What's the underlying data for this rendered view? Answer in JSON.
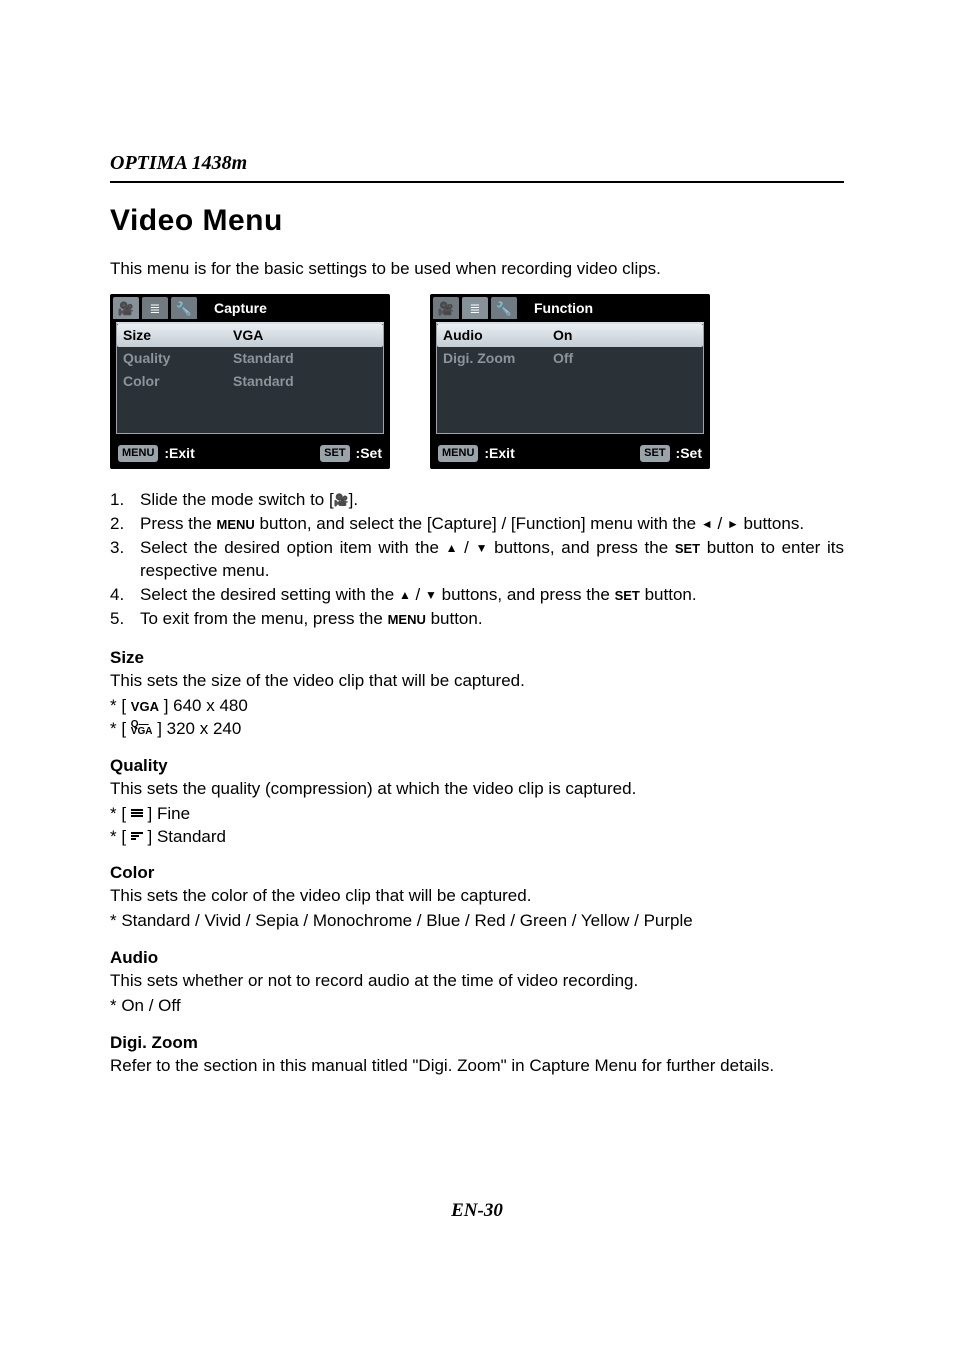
{
  "header": {
    "model": "OPTIMA 1438m"
  },
  "title": "Video Menu",
  "intro": "This menu is for the basic settings to be used when recording video clips.",
  "screens": {
    "capture": {
      "title": "Capture",
      "rows": [
        {
          "label": "Size",
          "value": "VGA",
          "selected": true
        },
        {
          "label": "Quality",
          "value": "Standard",
          "selected": false
        },
        {
          "label": "Color",
          "value": "Standard",
          "selected": false
        }
      ],
      "footer": {
        "exit_btn": "MENU",
        "exit_label": ":Exit",
        "set_btn": "SET",
        "set_label": ":Set"
      }
    },
    "function": {
      "title": "Function",
      "rows": [
        {
          "label": "Audio",
          "value": "On",
          "selected": true
        },
        {
          "label": "Digi. Zoom",
          "value": "Off",
          "selected": false
        }
      ],
      "footer": {
        "exit_btn": "MENU",
        "exit_label": ":Exit",
        "set_btn": "SET",
        "set_label": ":Set"
      }
    },
    "colors": {
      "screen_bg": "#000000",
      "body_bg": "#2b3237",
      "tab_bg": "#6f7a81",
      "tab_active_bg": "#86929a",
      "row_unselected_text": "#8b949b",
      "row_selected_bg_top": "#e9eef2",
      "row_selected_bg_bottom": "#c3cdd4",
      "chip_bg": "#9aa4ab"
    }
  },
  "steps": {
    "s1a": "Slide the mode switch to [",
    "s1b": "].",
    "s2a": "Press the ",
    "s2_menu": "MENU",
    "s2b": " button, and select the [Capture] / [Function] menu with the ",
    "s2_left": "◄",
    "s2_slash": " / ",
    "s2_right": "►",
    "s2c": " buttons.",
    "s3a": "Select the desired option item with the ",
    "s3_up": "▲",
    "s3_slash": " / ",
    "s3_down": "▼",
    "s3b": " buttons, and press the ",
    "s3_set": "SET",
    "s3c": " button to enter its respective menu.",
    "s4a": "Select the desired setting with the ",
    "s4_up": "▲",
    "s4_slash": " / ",
    "s4_down": "▼",
    "s4b": " buttons, and press the ",
    "s4_set": "SET",
    "s4c": " button.",
    "s5a": "To exit from the menu, press the ",
    "s5_menu": "MENU",
    "s5b": " button."
  },
  "size": {
    "title": "Size",
    "desc": "This sets the size of the video clip that will be captured.",
    "l1a": "* [ ",
    "l1_glyph": "VGA",
    "l1b": " ] 640 x 480",
    "l2a": "* [ ",
    "l2_top": "Q—",
    "l2_bot": "VGA",
    "l2b": " ] 320 x 240"
  },
  "quality": {
    "title": "Quality",
    "desc": "This sets the quality (compression) at which the video clip is captured.",
    "l1a": "* [ ",
    "l1b": " ] Fine",
    "l2a": "* [ ",
    "l2b": " ] Standard"
  },
  "color": {
    "title": "Color",
    "desc": "This sets the color of the video clip that will be captured.",
    "options": "* Standard / Vivid / Sepia / Monochrome / Blue / Red / Green / Yellow / Purple"
  },
  "audio": {
    "title": "Audio",
    "desc": "This sets whether or not to record audio at the time of video recording.",
    "options": "*  On / Off"
  },
  "digizoom": {
    "title": "Digi. Zoom",
    "desc": "Refer to the section in this manual titled \"Digi. Zoom\" in Capture Menu for further details."
  },
  "footer": {
    "page": "EN-30"
  },
  "icons": {
    "video": "🎥",
    "list": "≣",
    "wrench": "🔧"
  }
}
